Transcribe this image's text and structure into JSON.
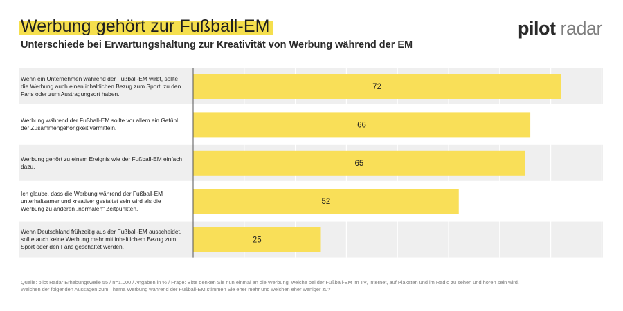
{
  "header": {
    "title": "Werbung gehört zur Fußball-EM",
    "subtitle": "Unterschiede bei Erwartungshaltung zur Kreativität von Werbung während der EM"
  },
  "logo": {
    "part1": "pilot",
    "part2": "radar"
  },
  "chart_data": {
    "type": "bar",
    "orientation": "horizontal",
    "xlim": [
      0,
      100
    ],
    "grid": true,
    "colors": {
      "bar": "#f9df58",
      "row_band": "#efefef",
      "axis": "#555555"
    },
    "categories": [
      "Wenn ein Unternehmen während der Fußball-EM wirbt, sollte die Werbung auch einen inhaltlichen Bezug zum Sport, zu den Fans oder zum Austragungsort haben.",
      "Werbung während der Fußball-EM sollte vor allem ein Gefühl der Zusammengehörigkeit vermitteln.",
      "Werbung gehört zu einem Ereignis wie der Fußball-EM einfach dazu.",
      "Ich glaube, dass die Werbung während der Fußball-EM unterhaltsamer und kreativer gestaltet sein wird als die Werbung zu anderen „normalen“ Zeitpunkten.",
      "Wenn Deutschland frühzeitig aus der Fußball-EM ausscheidet, sollte auch keine Werbung mehr mit inhaltlichem Bezug zum Sport oder den Fans geschaltet werden."
    ],
    "values": [
      72,
      66,
      65,
      52,
      25
    ]
  },
  "footer": {
    "line1": "Quelle: pilot Radar Erhebungswelle 55 / n=1.000 / Angaben in % / Frage: Bitte denken Sie nun einmal an die Werbung, welche bei der Fußball-EM im TV, Internet, auf Plakaten und im Radio zu sehen und hören sein wird.",
    "line2": "Welchen der folgenden Aussagen zum Thema Werbung während der Fußball-EM stimmen Sie eher mehr und welchen eher weniger zu?"
  }
}
